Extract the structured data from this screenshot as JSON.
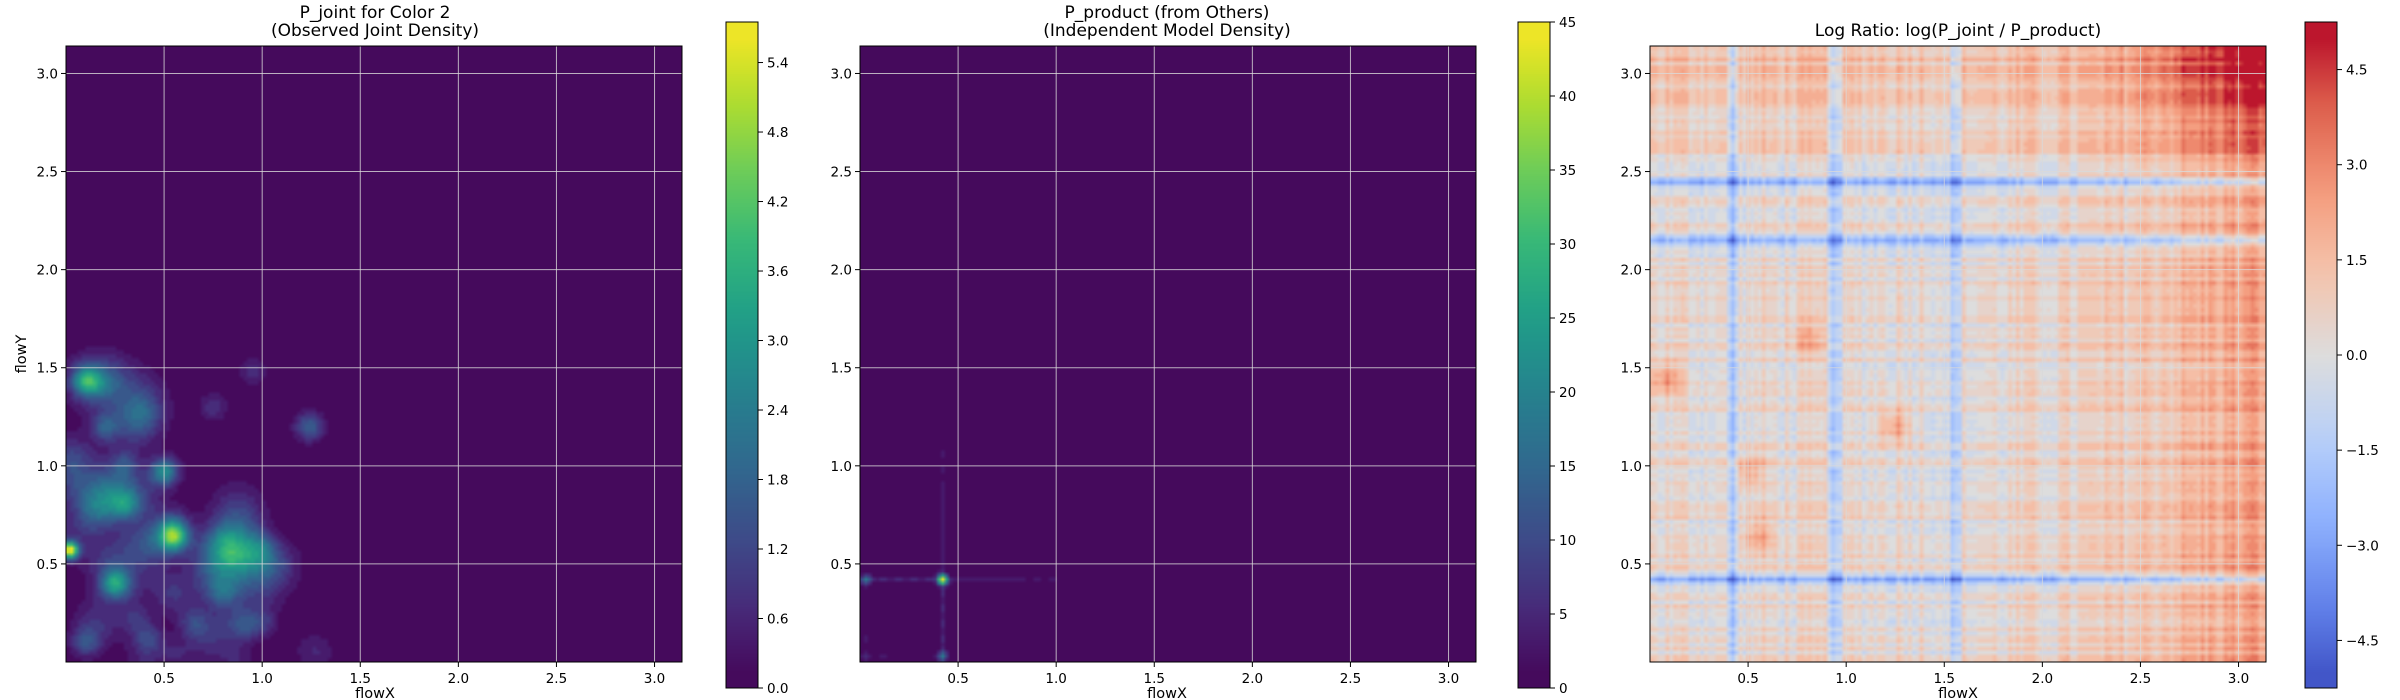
{
  "figure": {
    "background": "#ffffff",
    "grid_color": "#d9d9d9",
    "panels": [
      {
        "title_lines": [
          "P_joint for Color 2",
          "(Observed Joint Density)"
        ],
        "xlabel": "flowX",
        "ylabel": "flowY",
        "colormap": "viridis",
        "colorbar_ticks": [
          "0.0",
          "0.6",
          "1.2",
          "1.8",
          "2.4",
          "3.0",
          "3.6",
          "4.2",
          "4.8",
          "5.4"
        ]
      },
      {
        "title_lines": [
          "P_product (from Others)",
          "(Independent Model Density)"
        ],
        "xlabel": "flowX",
        "ylabel": "",
        "colormap": "viridis",
        "colorbar_ticks": [
          "0",
          "5",
          "10",
          "15",
          "20",
          "25",
          "30",
          "35",
          "40",
          "45"
        ]
      },
      {
        "title_lines": [
          "Log Ratio: log(P_joint / P_product)"
        ],
        "xlabel": "flowX",
        "ylabel": "",
        "colormap": "coolwarm",
        "colorbar_ticks": [
          "−4.5",
          "−3.0",
          "−1.5",
          "0.0",
          "1.5",
          "3.0",
          "4.5"
        ]
      }
    ]
  },
  "chart_data": [
    {
      "type": "heatmap",
      "title": "P_joint for Color 2\n(Observed Joint Density)",
      "xlabel": "flowX",
      "ylabel": "flowY",
      "xlim": [
        0.0,
        3.14
      ],
      "ylim": [
        0.0,
        3.14
      ],
      "x_ticks": [
        0.5,
        1.0,
        1.5,
        2.0,
        2.5,
        3.0
      ],
      "y_ticks": [
        0.5,
        1.0,
        1.5,
        2.0,
        2.5,
        3.0
      ],
      "grid": true,
      "colorbar": {
        "min": 0.0,
        "max": 5.75,
        "levels": 20,
        "ticks": [
          0.0,
          0.6,
          1.2,
          1.8,
          2.4,
          3.0,
          3.6,
          4.2,
          4.8,
          5.4
        ]
      },
      "peaks": [
        {
          "x": 0.02,
          "y": 0.57,
          "value": 5.5
        },
        {
          "x": 0.1,
          "y": 1.43,
          "value": 2.6
        },
        {
          "x": 0.25,
          "y": 0.4,
          "value": 2.8
        },
        {
          "x": 0.5,
          "y": 0.97,
          "value": 2.8
        },
        {
          "x": 0.55,
          "y": 0.64,
          "value": 3.4
        },
        {
          "x": 0.1,
          "y": 0.1,
          "value": 1.3
        },
        {
          "x": 0.42,
          "y": 0.12,
          "value": 1.2
        },
        {
          "x": 0.2,
          "y": 1.2,
          "value": 1.5
        },
        {
          "x": 0.3,
          "y": 0.8,
          "value": 1.5
        },
        {
          "x": 0.8,
          "y": 0.35,
          "value": 1.0
        },
        {
          "x": 0.85,
          "y": 0.55,
          "value": 1.0
        },
        {
          "x": 0.75,
          "y": 1.3,
          "value": 0.8
        },
        {
          "x": 1.0,
          "y": 0.2,
          "value": 0.8
        },
        {
          "x": 1.24,
          "y": 1.2,
          "value": 1.7
        },
        {
          "x": 0.3,
          "y": 1.0,
          "value": 1.1
        },
        {
          "x": 0.65,
          "y": 0.2,
          "value": 0.9
        },
        {
          "x": 1.0,
          "y": 0.6,
          "value": 0.8
        },
        {
          "x": 0.95,
          "y": 1.48,
          "value": 0.7
        }
      ]
    },
    {
      "type": "heatmap",
      "title": "P_product (from Others)\n(Independent Model Density)",
      "xlabel": "flowX",
      "xlim": [
        0.0,
        3.14
      ],
      "ylim": [
        0.0,
        3.14
      ],
      "x_ticks": [
        0.5,
        1.0,
        1.5,
        2.0,
        2.5,
        3.0
      ],
      "y_ticks": [
        0.5,
        1.0,
        1.5,
        2.0,
        2.5,
        3.0
      ],
      "grid": true,
      "colorbar": {
        "min": 0,
        "max": 45,
        "levels": 20,
        "ticks": [
          0,
          5,
          10,
          15,
          20,
          25,
          30,
          35,
          40,
          45
        ]
      },
      "peaks": [
        {
          "x": 0.42,
          "y": 0.42,
          "value": 42
        },
        {
          "x": 0.42,
          "y": 0.03,
          "value": 12
        },
        {
          "x": 0.03,
          "y": 0.42,
          "value": 12
        }
      ],
      "ridges": [
        {
          "axis": "horizontal",
          "at": 0.42,
          "from": 0.0,
          "to": 1.7,
          "value": 6
        },
        {
          "axis": "vertical",
          "at": 0.42,
          "from": 0.0,
          "to": 1.8,
          "value": 6
        },
        {
          "axis": "horizontal",
          "at": 0.03,
          "from": 0.0,
          "to": 0.8,
          "value": 3
        },
        {
          "axis": "vertical",
          "at": 0.03,
          "from": 0.0,
          "to": 0.8,
          "value": 3
        }
      ]
    },
    {
      "type": "heatmap",
      "title": "Log Ratio: log(P_joint / P_product)",
      "xlabel": "flowX",
      "xlim": [
        0.0,
        3.14
      ],
      "ylim": [
        0.0,
        3.14
      ],
      "x_ticks": [
        0.5,
        1.0,
        1.5,
        2.0,
        2.5,
        3.0
      ],
      "y_ticks": [
        0.5,
        1.0,
        1.5,
        2.0,
        2.5,
        3.0
      ],
      "grid": true,
      "colorbar": {
        "min": -5.25,
        "max": 5.25,
        "levels": 21,
        "ticks": [
          -4.5,
          -3.0,
          -1.5,
          0.0,
          1.5,
          3.0,
          4.5
        ]
      },
      "structure": {
        "low_rows_y": [
          0.42,
          2.15,
          2.45
        ],
        "low_cols_x": [
          0.42,
          0.95,
          1.55
        ],
        "high_region": {
          "x_from": 2.3,
          "y_from": 2.4,
          "peak_value": 4.8
        },
        "hot_spots": [
          {
            "x": 0.08,
            "y": 1.45,
            "value": 2.4
          },
          {
            "x": 1.25,
            "y": 1.2,
            "value": 2.4
          },
          {
            "x": 0.5,
            "y": 0.97,
            "value": 1.8
          },
          {
            "x": 0.55,
            "y": 0.65,
            "value": 1.8
          },
          {
            "x": 0.8,
            "y": 1.65,
            "value": 1.5
          }
        ]
      }
    }
  ]
}
